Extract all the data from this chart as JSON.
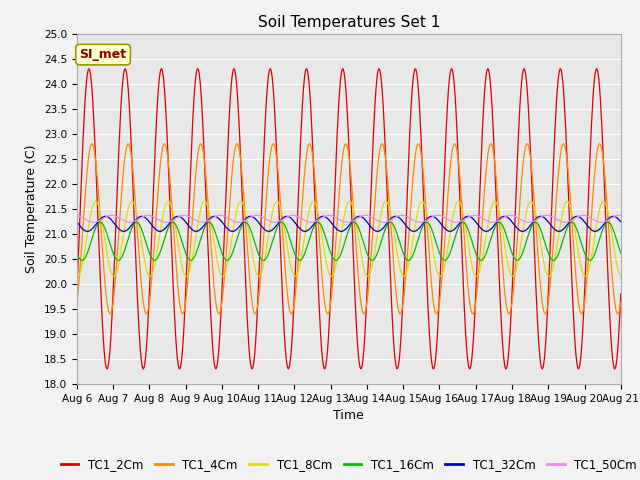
{
  "title": "Soil Temperatures Set 1",
  "xlabel": "Time",
  "ylabel": "Soil Temperature (C)",
  "ylim": [
    18.0,
    25.0
  ],
  "yticks": [
    18.0,
    18.5,
    19.0,
    19.5,
    20.0,
    20.5,
    21.0,
    21.5,
    22.0,
    22.5,
    23.0,
    23.5,
    24.0,
    24.5,
    25.0
  ],
  "series": [
    {
      "label": "TC1_2Cm",
      "color": "#dd0000",
      "mean": 21.3,
      "amplitude": 3.0,
      "phase": 2.0,
      "period": 24.0
    },
    {
      "label": "TC1_4Cm",
      "color": "#ff8800",
      "mean": 21.1,
      "amplitude": 1.7,
      "phase": 4.0,
      "period": 24.0
    },
    {
      "label": "TC1_8Cm",
      "color": "#dddd00",
      "mean": 20.9,
      "amplitude": 0.75,
      "phase": 6.5,
      "period": 24.0
    },
    {
      "label": "TC1_16Cm",
      "color": "#00bb00",
      "mean": 20.85,
      "amplitude": 0.38,
      "phase": 9.5,
      "period": 24.0
    },
    {
      "label": "TC1_32Cm",
      "color": "#0000cc",
      "mean": 21.2,
      "amplitude": 0.15,
      "phase": 13.0,
      "period": 24.0
    },
    {
      "label": "TC1_50Cm",
      "color": "#ee88ee",
      "mean": 21.3,
      "amplitude": 0.07,
      "phase": 17.0,
      "period": 24.0
    }
  ],
  "annotation_text": "SI_met",
  "plot_bg_color": "#e8e8e8",
  "fig_bg_color": "#f2f2f2",
  "grid_color": "#ffffff",
  "title_fontsize": 11,
  "axis_label_fontsize": 9,
  "tick_fontsize": 7.5,
  "legend_fontsize": 8.5
}
